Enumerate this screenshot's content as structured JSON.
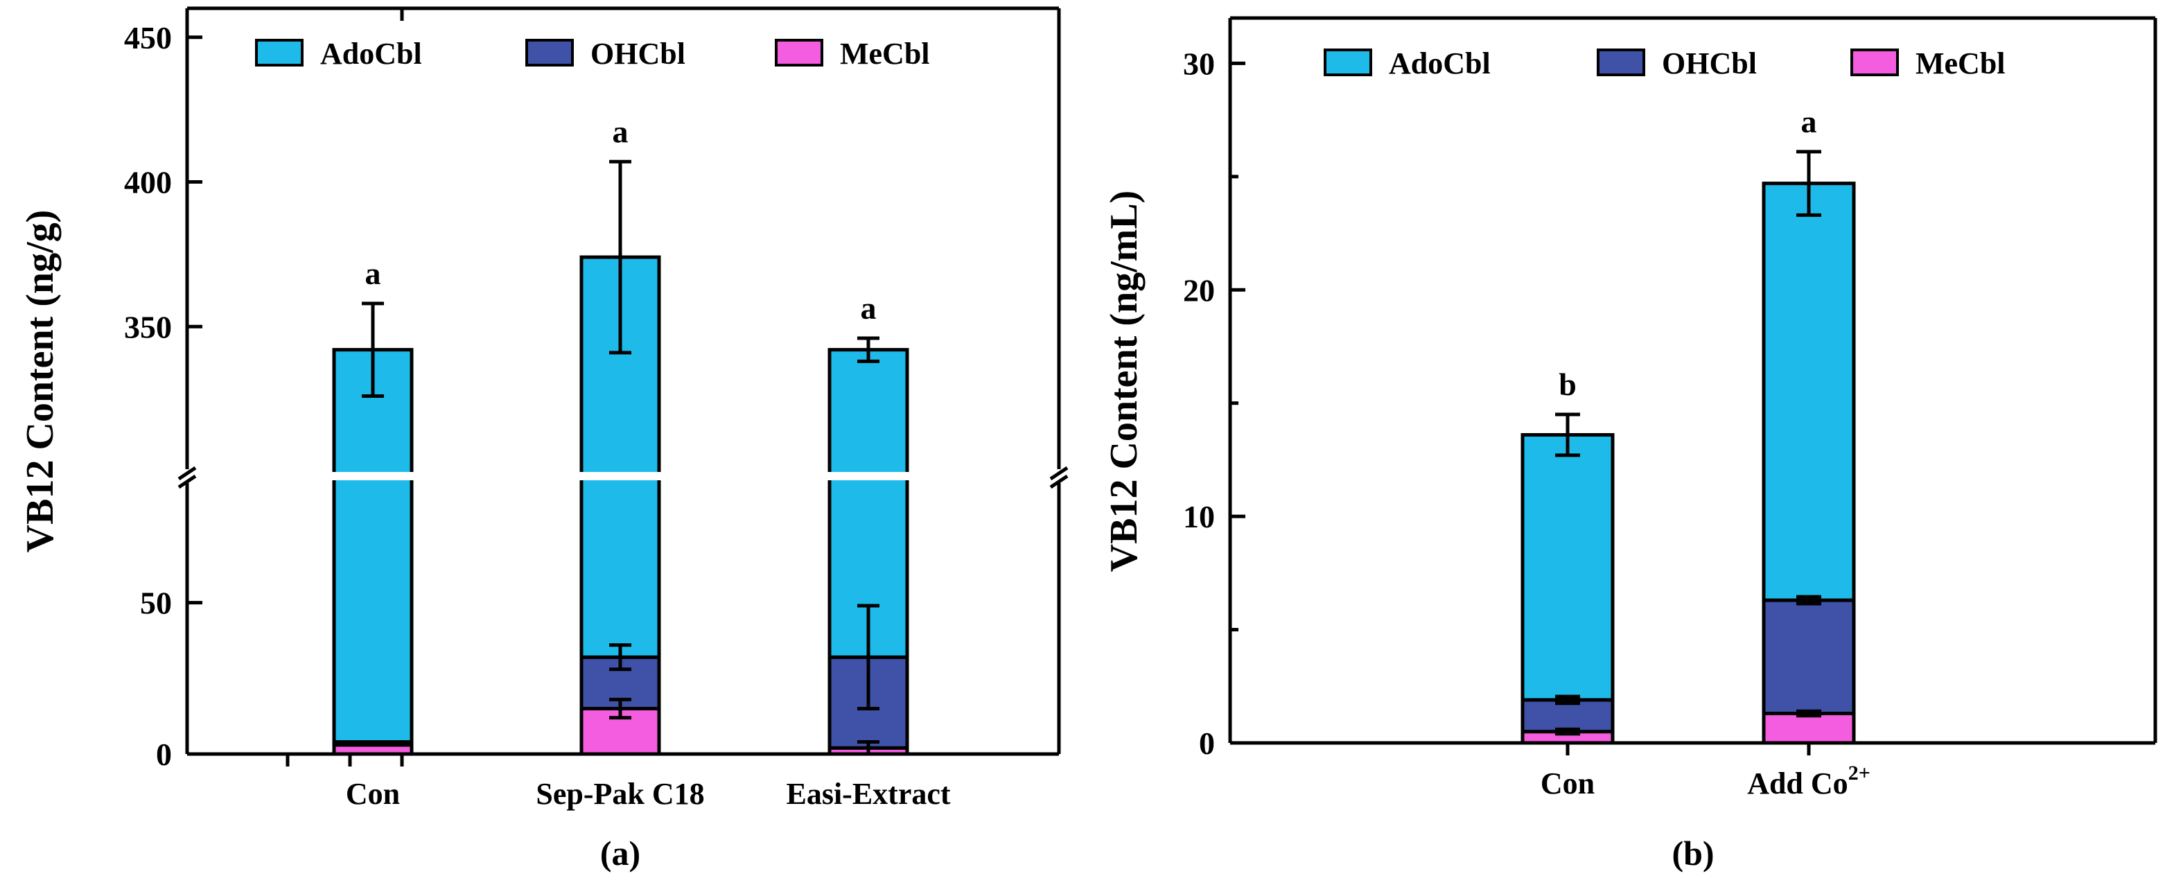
{
  "colors": {
    "AdoCbl": "#1ebbea",
    "OHCbl": "#3f52a8",
    "MeCbl": "#f45ddf"
  },
  "chart_data": [
    {
      "type": "bar",
      "stacked": true,
      "panel_label": "(a)",
      "ylabel": "VB12 Content (ng/g)",
      "categories": [
        "Con",
        "Sep-Pak C18",
        "Easi-Extract"
      ],
      "axis_break": {
        "lower": [
          0,
          90
        ],
        "upper": [
          300,
          460
        ]
      },
      "yticks_lower": [
        0,
        50
      ],
      "yticks_upper": [
        350,
        400,
        450
      ],
      "legend": [
        "AdoCbl",
        "OHCbl",
        "MeCbl"
      ],
      "legend_position": "top",
      "series": [
        {
          "name": "MeCbl",
          "values": [
            3,
            15,
            2
          ],
          "errors": [
            0,
            3,
            2
          ]
        },
        {
          "name": "OHCbl",
          "values": [
            1,
            17,
            30
          ],
          "errors": [
            0,
            4,
            17
          ]
        },
        {
          "name": "AdoCbl",
          "values": [
            338,
            342,
            310
          ],
          "errors": [
            16,
            33,
            4
          ]
        }
      ],
      "significance": [
        "a",
        "a",
        "a"
      ]
    },
    {
      "type": "bar",
      "stacked": true,
      "panel_label": "(b)",
      "ylabel": "VB12 Content (ng/mL)",
      "categories": [
        "Con",
        "Add Co"
      ],
      "category_superscripts": [
        "",
        "2+"
      ],
      "ylim": [
        0,
        32
      ],
      "yticks": [
        0,
        10,
        20,
        30
      ],
      "legend": [
        "AdoCbl",
        "OHCbl",
        "MeCbl"
      ],
      "legend_position": "top",
      "series": [
        {
          "name": "MeCbl",
          "values": [
            0.5,
            1.3
          ],
          "errors": [
            0.1,
            0.1
          ]
        },
        {
          "name": "OHCbl",
          "values": [
            1.4,
            5.0
          ],
          "errors": [
            0.15,
            0.15
          ]
        },
        {
          "name": "AdoCbl",
          "values": [
            11.7,
            18.4
          ],
          "errors": [
            0.9,
            1.4
          ]
        }
      ],
      "significance": [
        "b",
        "a"
      ]
    }
  ]
}
